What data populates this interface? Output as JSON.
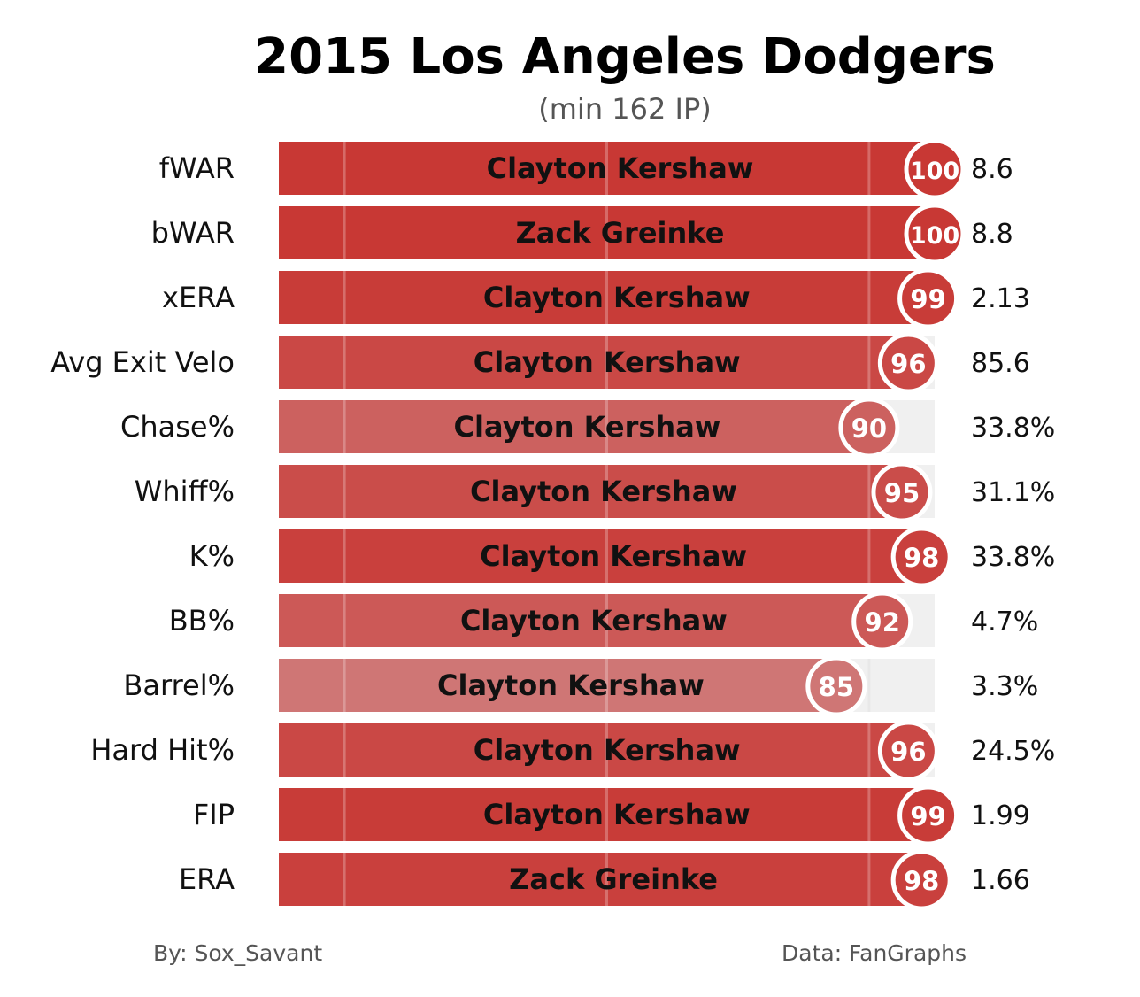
{
  "chart_data": {
    "type": "bar",
    "title": "2015 Los Angeles Dodgers",
    "subtitle": "(min 162 IP)",
    "xlim": [
      0,
      100
    ],
    "grid_lines": [
      10,
      50,
      90
    ],
    "categories": [
      "fWAR",
      "bWAR",
      "xERA",
      "Avg Exit Velo",
      "Chase%",
      "Whiff%",
      "K%",
      "BB%",
      "Barrel%",
      "Hard Hit%",
      "FIP",
      "ERA"
    ],
    "players": [
      "Clayton Kershaw",
      "Zack Greinke",
      "Clayton Kershaw",
      "Clayton Kershaw",
      "Clayton Kershaw",
      "Clayton Kershaw",
      "Clayton Kershaw",
      "Clayton Kershaw",
      "Clayton Kershaw",
      "Clayton Kershaw",
      "Clayton Kershaw",
      "Zack Greinke"
    ],
    "percentiles": [
      100,
      100,
      99,
      96,
      90,
      95,
      98,
      92,
      85,
      96,
      99,
      98
    ],
    "stat_values": [
      "8.6",
      "8.8",
      "2.13",
      "85.6",
      "33.8%",
      "31.1%",
      "33.8%",
      "4.7%",
      "3.3%",
      "24.5%",
      "1.99",
      "1.66"
    ],
    "colors": {
      "high": "#c83834",
      "low": "#d08282",
      "track": "#f0f0f0"
    }
  },
  "footer": {
    "left": "By: Sox_Savant",
    "right": "Data: FanGraphs"
  }
}
